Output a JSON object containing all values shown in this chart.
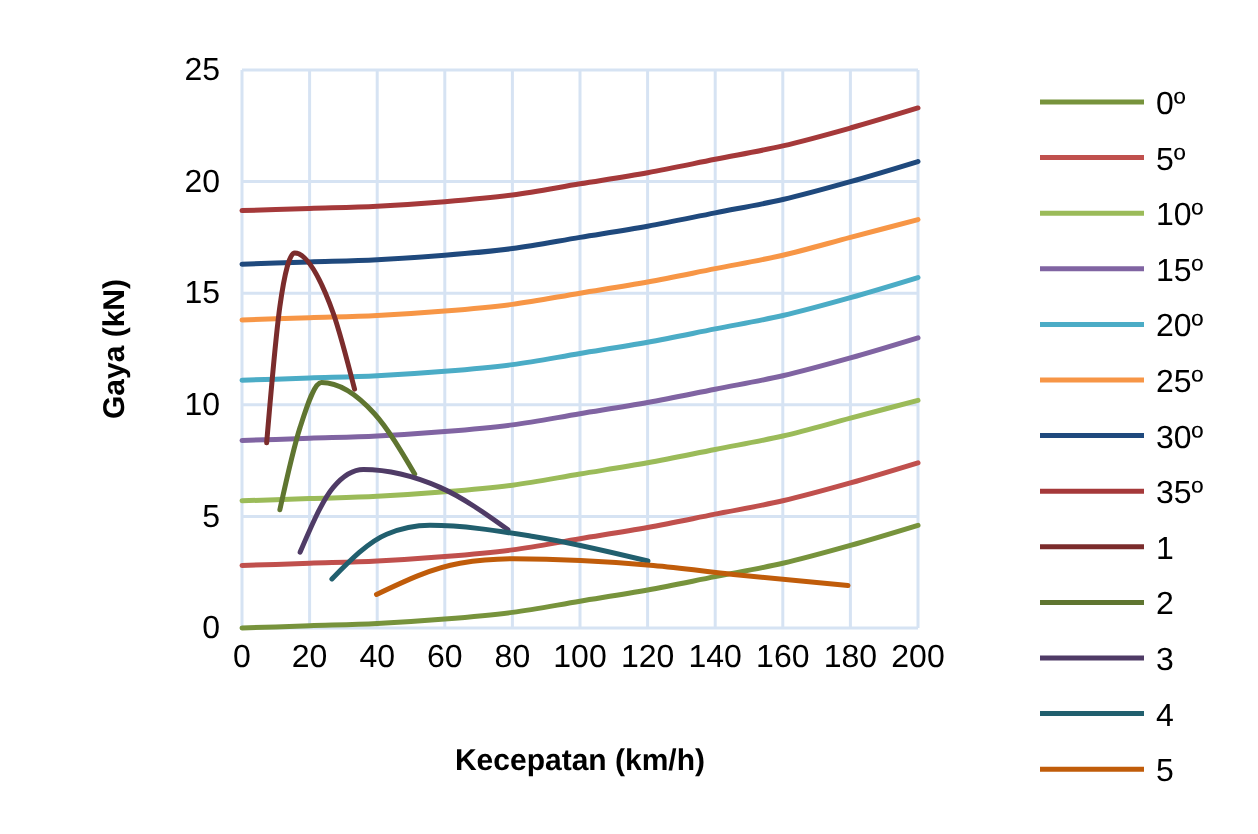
{
  "chart_data": {
    "type": "line",
    "xlabel": "Kecepatan (km/h)",
    "ylabel": "Gaya (kN)",
    "xlim": [
      0,
      200
    ],
    "ylim": [
      0,
      25
    ],
    "xticks": [
      0,
      20,
      40,
      60,
      80,
      100,
      120,
      140,
      160,
      180,
      200
    ],
    "yticks": [
      0,
      5,
      10,
      15,
      20,
      25
    ],
    "grid": true,
    "legend": "right",
    "line_style": "solid",
    "marker": "none",
    "x": [
      0,
      20,
      40,
      60,
      80,
      100,
      120,
      140,
      160,
      180,
      200
    ],
    "series": [
      {
        "name": "0º",
        "color": "#77933c",
        "values": [
          0,
          0.1,
          0.2,
          0.4,
          0.7,
          1.2,
          1.7,
          2.3,
          2.9,
          3.7,
          4.6
        ]
      },
      {
        "name": "5º",
        "color": "#c0504d",
        "values": [
          2.8,
          2.9,
          3.0,
          3.2,
          3.5,
          4.0,
          4.5,
          5.1,
          5.7,
          6.5,
          7.4
        ]
      },
      {
        "name": "10º",
        "color": "#9bbb59",
        "values": [
          5.7,
          5.8,
          5.9,
          6.1,
          6.4,
          6.9,
          7.4,
          8.0,
          8.6,
          9.4,
          10.2
        ]
      },
      {
        "name": "15º",
        "color": "#8064a2",
        "values": [
          8.4,
          8.5,
          8.6,
          8.8,
          9.1,
          9.6,
          10.1,
          10.7,
          11.3,
          12.1,
          13.0
        ]
      },
      {
        "name": "20º",
        "color": "#4bacc6",
        "values": [
          11.1,
          11.2,
          11.3,
          11.5,
          11.8,
          12.3,
          12.8,
          13.4,
          14.0,
          14.8,
          15.7
        ]
      },
      {
        "name": "25º",
        "color": "#f79646",
        "values": [
          13.8,
          13.9,
          14.0,
          14.2,
          14.5,
          15.0,
          15.5,
          16.1,
          16.7,
          17.5,
          18.3
        ]
      },
      {
        "name": "30º",
        "color": "#1f497d",
        "values": [
          16.3,
          16.4,
          16.5,
          16.7,
          17.0,
          17.5,
          18.0,
          18.6,
          19.2,
          20.0,
          20.9
        ]
      },
      {
        "name": "35º",
        "color": "#a5393a",
        "values": [
          18.7,
          18.8,
          18.9,
          19.1,
          19.4,
          19.9,
          20.4,
          21.0,
          21.6,
          22.4,
          23.3
        ]
      },
      {
        "name": "1",
        "color": "#7b2c2c",
        "x": [
          7.3,
          11.2,
          15.6,
          24.7,
          27,
          33.3
        ],
        "values": [
          8.3,
          14.4,
          16.8,
          15.0,
          14.1,
          10.7
        ]
      },
      {
        "name": "2",
        "color": "#5f7530",
        "x": [
          11.2,
          17.2,
          23.5,
          39.2,
          51.1
        ],
        "values": [
          5.3,
          9.0,
          11.0,
          9.6,
          6.9
        ]
      },
      {
        "name": "3",
        "color": "#4f3b66",
        "x": [
          17.2,
          27,
          35.9,
          58.6,
          78.7
        ],
        "values": [
          3.4,
          6.3,
          7.1,
          6.3,
          4.4
        ]
      },
      {
        "name": "4",
        "color": "#215f6e",
        "x": [
          26.6,
          42.8,
          55.6,
          86.2,
          120.1
        ],
        "values": [
          2.2,
          4.2,
          4.6,
          4.1,
          3.0
        ]
      },
      {
        "name": "5",
        "color": "#c05c0a",
        "x": [
          39.8,
          64.5,
          80.3,
          121.7,
          145.4,
          179.3
        ],
        "values": [
          1.5,
          2.9,
          3.1,
          2.8,
          2.4,
          1.9
        ]
      }
    ]
  }
}
